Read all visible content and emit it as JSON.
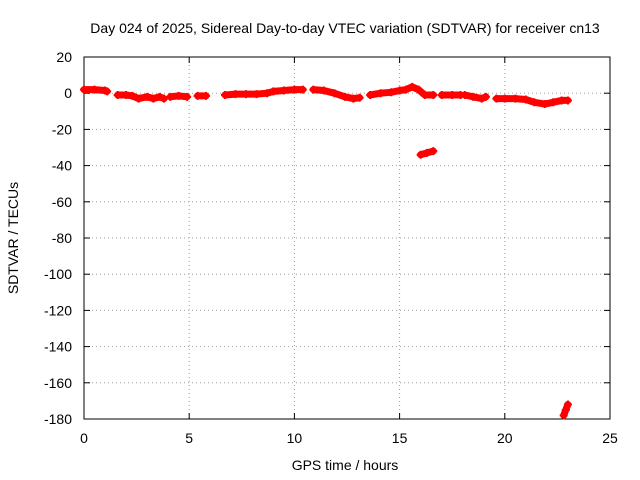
{
  "chart_data": {
    "type": "scatter",
    "title": "Day 024 of 2025, Sidereal Day-to-day VTEC variation (SDTVAR) for receiver cn13",
    "xlabel": "GPS time / hours",
    "ylabel": "SDTVAR / TECUs",
    "xlim": [
      0,
      25
    ],
    "ylim": [
      -180,
      20
    ],
    "x_ticks": [
      "0",
      "5",
      "10",
      "15",
      "20",
      "25"
    ],
    "y_ticks": [
      "20",
      "0",
      "-20",
      "-40",
      "-60",
      "-80",
      "-100",
      "-120",
      "-140",
      "-160",
      "-180"
    ],
    "grid": true,
    "marker_color": "#ff0000",
    "series": [
      {
        "name": "SDTVAR",
        "segments": [
          [
            [
              0.0,
              2
            ],
            [
              0.5,
              2
            ],
            [
              1.0,
              1.5
            ],
            [
              1.1,
              1
            ]
          ],
          [
            [
              1.6,
              -1
            ],
            [
              2.0,
              -1
            ],
            [
              2.3,
              -1.5
            ],
            [
              2.6,
              -3
            ],
            [
              3.0,
              -2
            ],
            [
              3.3,
              -3
            ],
            [
              3.6,
              -2
            ],
            [
              3.8,
              -3
            ]
          ],
          [
            [
              4.1,
              -2
            ],
            [
              4.5,
              -1.5
            ],
            [
              4.9,
              -2
            ]
          ],
          [
            [
              5.4,
              -1.5
            ],
            [
              5.8,
              -1.5
            ]
          ],
          [
            [
              6.7,
              -1
            ],
            [
              7.2,
              -0.5
            ],
            [
              7.7,
              -0.5
            ],
            [
              8.2,
              -0.5
            ],
            [
              8.7,
              0
            ],
            [
              9.0,
              1
            ],
            [
              9.5,
              1.5
            ],
            [
              10.0,
              2
            ],
            [
              10.4,
              2
            ]
          ],
          [
            [
              10.9,
              2
            ],
            [
              11.4,
              1.5
            ],
            [
              11.9,
              0
            ],
            [
              12.4,
              -2
            ],
            [
              12.8,
              -3
            ],
            [
              13.1,
              -2.5
            ]
          ],
          [
            [
              13.6,
              -1
            ],
            [
              14.1,
              0
            ],
            [
              14.6,
              0.5
            ],
            [
              15.0,
              1.5
            ],
            [
              15.3,
              2
            ],
            [
              15.6,
              3.5
            ],
            [
              15.9,
              2
            ],
            [
              16.2,
              -1
            ],
            [
              16.6,
              -1
            ]
          ],
          [
            [
              17.0,
              -1
            ],
            [
              17.5,
              -1
            ],
            [
              17.9,
              -1
            ]
          ],
          [
            [
              18.1,
              -1
            ],
            [
              18.5,
              -2
            ],
            [
              18.9,
              -3
            ],
            [
              19.1,
              -2
            ]
          ],
          [
            [
              19.6,
              -3
            ],
            [
              20.0,
              -3
            ],
            [
              20.5,
              -3
            ],
            [
              21.0,
              -3.5
            ],
            [
              21.4,
              -5
            ],
            [
              21.9,
              -6
            ],
            [
              22.3,
              -5
            ],
            [
              22.7,
              -4
            ],
            [
              23.0,
              -4
            ]
          ],
          [
            [
              16.0,
              -34
            ],
            [
              16.3,
              -33
            ],
            [
              16.6,
              -32
            ]
          ],
          [
            [
              22.8,
              -178
            ],
            [
              22.9,
              -175
            ],
            [
              23.0,
              -172
            ]
          ]
        ]
      }
    ]
  }
}
